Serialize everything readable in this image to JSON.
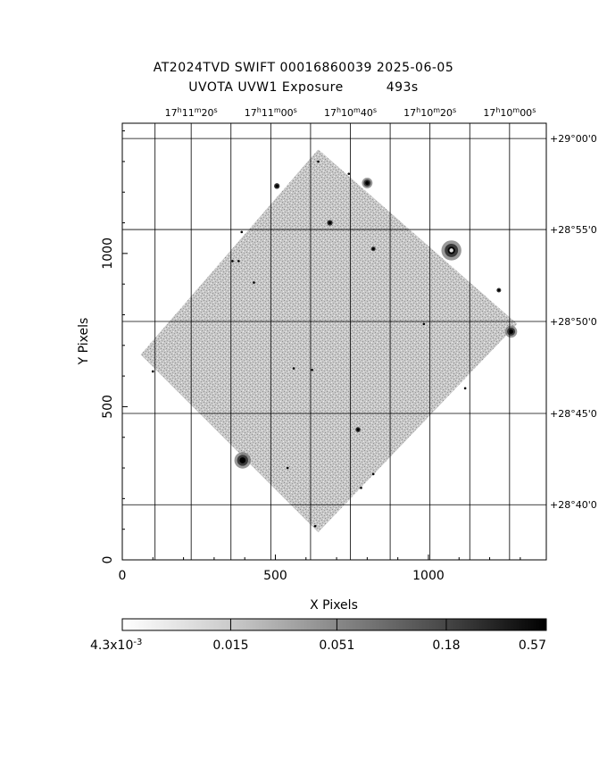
{
  "header": {
    "title": "AT2024TVD SWIFT 00016860039 2025-06-05",
    "subtitle_left": "UVOTA UVW1 Exposure",
    "subtitle_right": "493s"
  },
  "chart_data": {
    "type": "heatmap",
    "xlabel": "X Pixels",
    "ylabel": "Y Pixels",
    "xlim": [
      0,
      1385
    ],
    "ylim": [
      0,
      1425
    ],
    "x_ticks": [
      {
        "value": 0,
        "label": "0"
      },
      {
        "value": 500,
        "label": "500"
      },
      {
        "value": 1000,
        "label": "1000"
      }
    ],
    "y_ticks": [
      {
        "value": 0,
        "label": "0"
      },
      {
        "value": 500,
        "label": "500"
      },
      {
        "value": 1000,
        "label": "1000"
      }
    ],
    "ra_ticks": [
      {
        "x": 225,
        "h": "17",
        "m": "11",
        "s": "20"
      },
      {
        "x": 485,
        "h": "17",
        "m": "11",
        "s": "00"
      },
      {
        "x": 745,
        "h": "17",
        "m": "10",
        "s": "40"
      },
      {
        "x": 1005,
        "h": "17",
        "m": "10",
        "s": "20"
      },
      {
        "x": 1265,
        "h": "17",
        "m": "10",
        "s": "00"
      }
    ],
    "dec_ticks": [
      {
        "y": 1375,
        "label": "+29°00'0"
      },
      {
        "y": 1078,
        "label": "+28°55'0"
      },
      {
        "y": 778,
        "label": "+28°50'0"
      },
      {
        "y": 478,
        "label": "+28°45'0"
      },
      {
        "y": 180,
        "label": "+28°40'0"
      }
    ],
    "grid": true,
    "colorbar": {
      "position": "bottom",
      "scale": "log",
      "min": 0.0043,
      "max": 0.57,
      "tick_labels": [
        {
          "value": 0.0043,
          "base": "4.3x10",
          "exp": "-3"
        },
        {
          "value": 0.015,
          "label": "0.015"
        },
        {
          "value": 0.051,
          "label": "0.051"
        },
        {
          "value": 0.18,
          "label": "0.18"
        },
        {
          "value": 0.57,
          "label": "0.57"
        }
      ]
    },
    "exposure_footprint": [
      [
        640,
        1340
      ],
      [
        1290,
        770
      ],
      [
        640,
        90
      ],
      [
        60,
        670
      ]
    ],
    "sources": [
      {
        "x": 1075,
        "y": 1010,
        "value": 0.57
      },
      {
        "x": 393,
        "y": 325,
        "value": 0.45
      },
      {
        "x": 1270,
        "y": 745,
        "value": 0.3
      },
      {
        "x": 800,
        "y": 1230,
        "value": 0.25
      },
      {
        "x": 678,
        "y": 1100,
        "value": 0.18
      },
      {
        "x": 505,
        "y": 1220,
        "value": 0.18
      },
      {
        "x": 770,
        "y": 425,
        "value": 0.15
      },
      {
        "x": 820,
        "y": 1015,
        "value": 0.12
      },
      {
        "x": 1230,
        "y": 880,
        "value": 0.12
      },
      {
        "x": 430,
        "y": 905,
        "value": 0.1
      },
      {
        "x": 380,
        "y": 975,
        "value": 0.08
      },
      {
        "x": 780,
        "y": 235,
        "value": 0.08
      },
      {
        "x": 820,
        "y": 280,
        "value": 0.08
      },
      {
        "x": 985,
        "y": 770,
        "value": 0.08
      },
      {
        "x": 640,
        "y": 1300,
        "value": 0.08
      },
      {
        "x": 100,
        "y": 615,
        "value": 0.06
      },
      {
        "x": 560,
        "y": 625,
        "value": 0.05
      },
      {
        "x": 620,
        "y": 620,
        "value": 0.05
      },
      {
        "x": 740,
        "y": 1260,
        "value": 0.05
      },
      {
        "x": 360,
        "y": 975,
        "value": 0.05
      },
      {
        "x": 390,
        "y": 1070,
        "value": 0.05
      },
      {
        "x": 540,
        "y": 300,
        "value": 0.05
      },
      {
        "x": 1120,
        "y": 560,
        "value": 0.04
      },
      {
        "x": 630,
        "y": 110,
        "value": 0.04
      }
    ]
  }
}
